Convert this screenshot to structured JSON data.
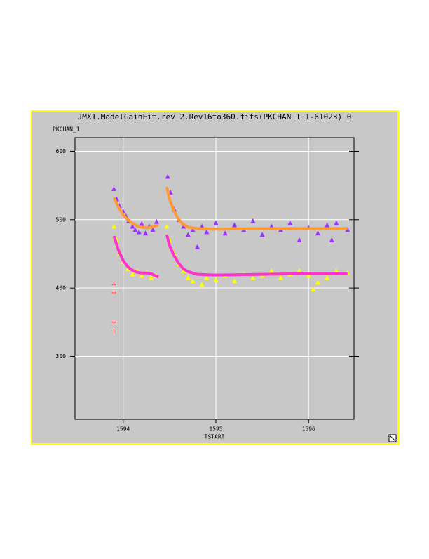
{
  "chart_data": {
    "type": "scatter",
    "title": "JMX1.ModelGainFit.rev_2.Rev16to360.fits(PKCHAN_1_1-61023)_0",
    "xlabel": "TSTART",
    "ylabel": "PKCHAN_1",
    "xlim": [
      1593.48,
      1596.49
    ],
    "ylim": [
      208,
      620
    ],
    "xticks": [
      1594,
      1595,
      1596
    ],
    "yticks": [
      300,
      400,
      500,
      600
    ],
    "grid": true,
    "series": [
      {
        "color": "#9933ff",
        "marker": "triangle",
        "x": [
          1593.9,
          1593.93,
          1593.96,
          1594.0,
          1594.03,
          1594.06,
          1594.1,
          1594.13,
          1594.17,
          1594.2,
          1594.24,
          1594.28,
          1594.32,
          1594.36,
          1594.48,
          1594.51,
          1594.55,
          1594.6,
          1594.65,
          1594.7,
          1594.75,
          1594.8,
          1594.85,
          1594.9,
          1595.0,
          1595.1,
          1595.2,
          1595.3,
          1595.4,
          1595.5,
          1595.6,
          1595.7,
          1595.8,
          1595.9,
          1596.0,
          1596.1,
          1596.2,
          1596.25,
          1596.3,
          1596.42
        ],
        "values": [
          545,
          530,
          520,
          512,
          505,
          498,
          490,
          485,
          482,
          494,
          480,
          490,
          485,
          497,
          563,
          540,
          515,
          500,
          490,
          478,
          485,
          460,
          490,
          482,
          495,
          480,
          492,
          485,
          498,
          478,
          490,
          485,
          495,
          470,
          488,
          480,
          492,
          470,
          495,
          485
        ]
      },
      {
        "color": "#ffff00",
        "marker": "triangle",
        "x": [
          1593.9,
          1593.93,
          1593.96,
          1594.0,
          1594.05,
          1594.1,
          1594.15,
          1594.2,
          1594.25,
          1594.3,
          1594.35,
          1594.47,
          1594.5,
          1594.55,
          1594.6,
          1594.65,
          1594.7,
          1594.75,
          1594.85,
          1594.9,
          1595.0,
          1595.1,
          1595.2,
          1595.3,
          1595.4,
          1595.5,
          1595.6,
          1595.7,
          1595.8,
          1595.9,
          1596.0,
          1596.05,
          1596.1,
          1596.2,
          1596.3,
          1596.42
        ],
        "values": [
          490,
          470,
          450,
          438,
          428,
          420,
          425,
          418,
          422,
          415,
          418,
          490,
          470,
          450,
          435,
          425,
          415,
          410,
          405,
          415,
          412,
          418,
          410,
          420,
          415,
          418,
          425,
          415,
          420,
          425,
          418,
          398,
          408,
          415,
          425,
          422
        ]
      },
      {
        "color": "#ff9933",
        "marker": "line",
        "x": [
          1593.9,
          1593.95,
          1594.0,
          1594.05,
          1594.1,
          1594.15,
          1594.2,
          1594.25,
          1594.3,
          1594.35,
          1594.38,
          1594.42,
          1594.47,
          1594.5,
          1594.55,
          1594.6,
          1594.65,
          1594.7,
          1594.8,
          1595.0,
          1595.5,
          1596.0,
          1596.42
        ],
        "values": [
          532,
          518,
          507,
          500,
          495,
          491,
          489,
          488,
          489,
          491,
          492,
          null,
          548,
          530,
          512,
          500,
          493,
          489,
          487,
          486,
          487,
          487,
          487
        ]
      },
      {
        "color": "#ff33cc",
        "marker": "line",
        "x": [
          1593.9,
          1593.95,
          1594.0,
          1594.05,
          1594.1,
          1594.15,
          1594.2,
          1594.25,
          1594.3,
          1594.38,
          1594.42,
          1594.47,
          1594.5,
          1594.55,
          1594.6,
          1594.65,
          1594.7,
          1594.8,
          1595.0,
          1595.5,
          1596.0,
          1596.42
        ],
        "values": [
          476,
          455,
          440,
          431,
          426,
          423,
          422,
          422,
          421,
          416,
          null,
          478,
          462,
          447,
          436,
          428,
          424,
          420,
          419,
          420,
          421,
          421
        ]
      },
      {
        "color": "#ff3333",
        "marker": "cross",
        "x": [
          1593.9,
          1593.9,
          1593.9,
          1593.9
        ],
        "values": [
          405,
          393,
          350,
          337
        ]
      }
    ]
  }
}
